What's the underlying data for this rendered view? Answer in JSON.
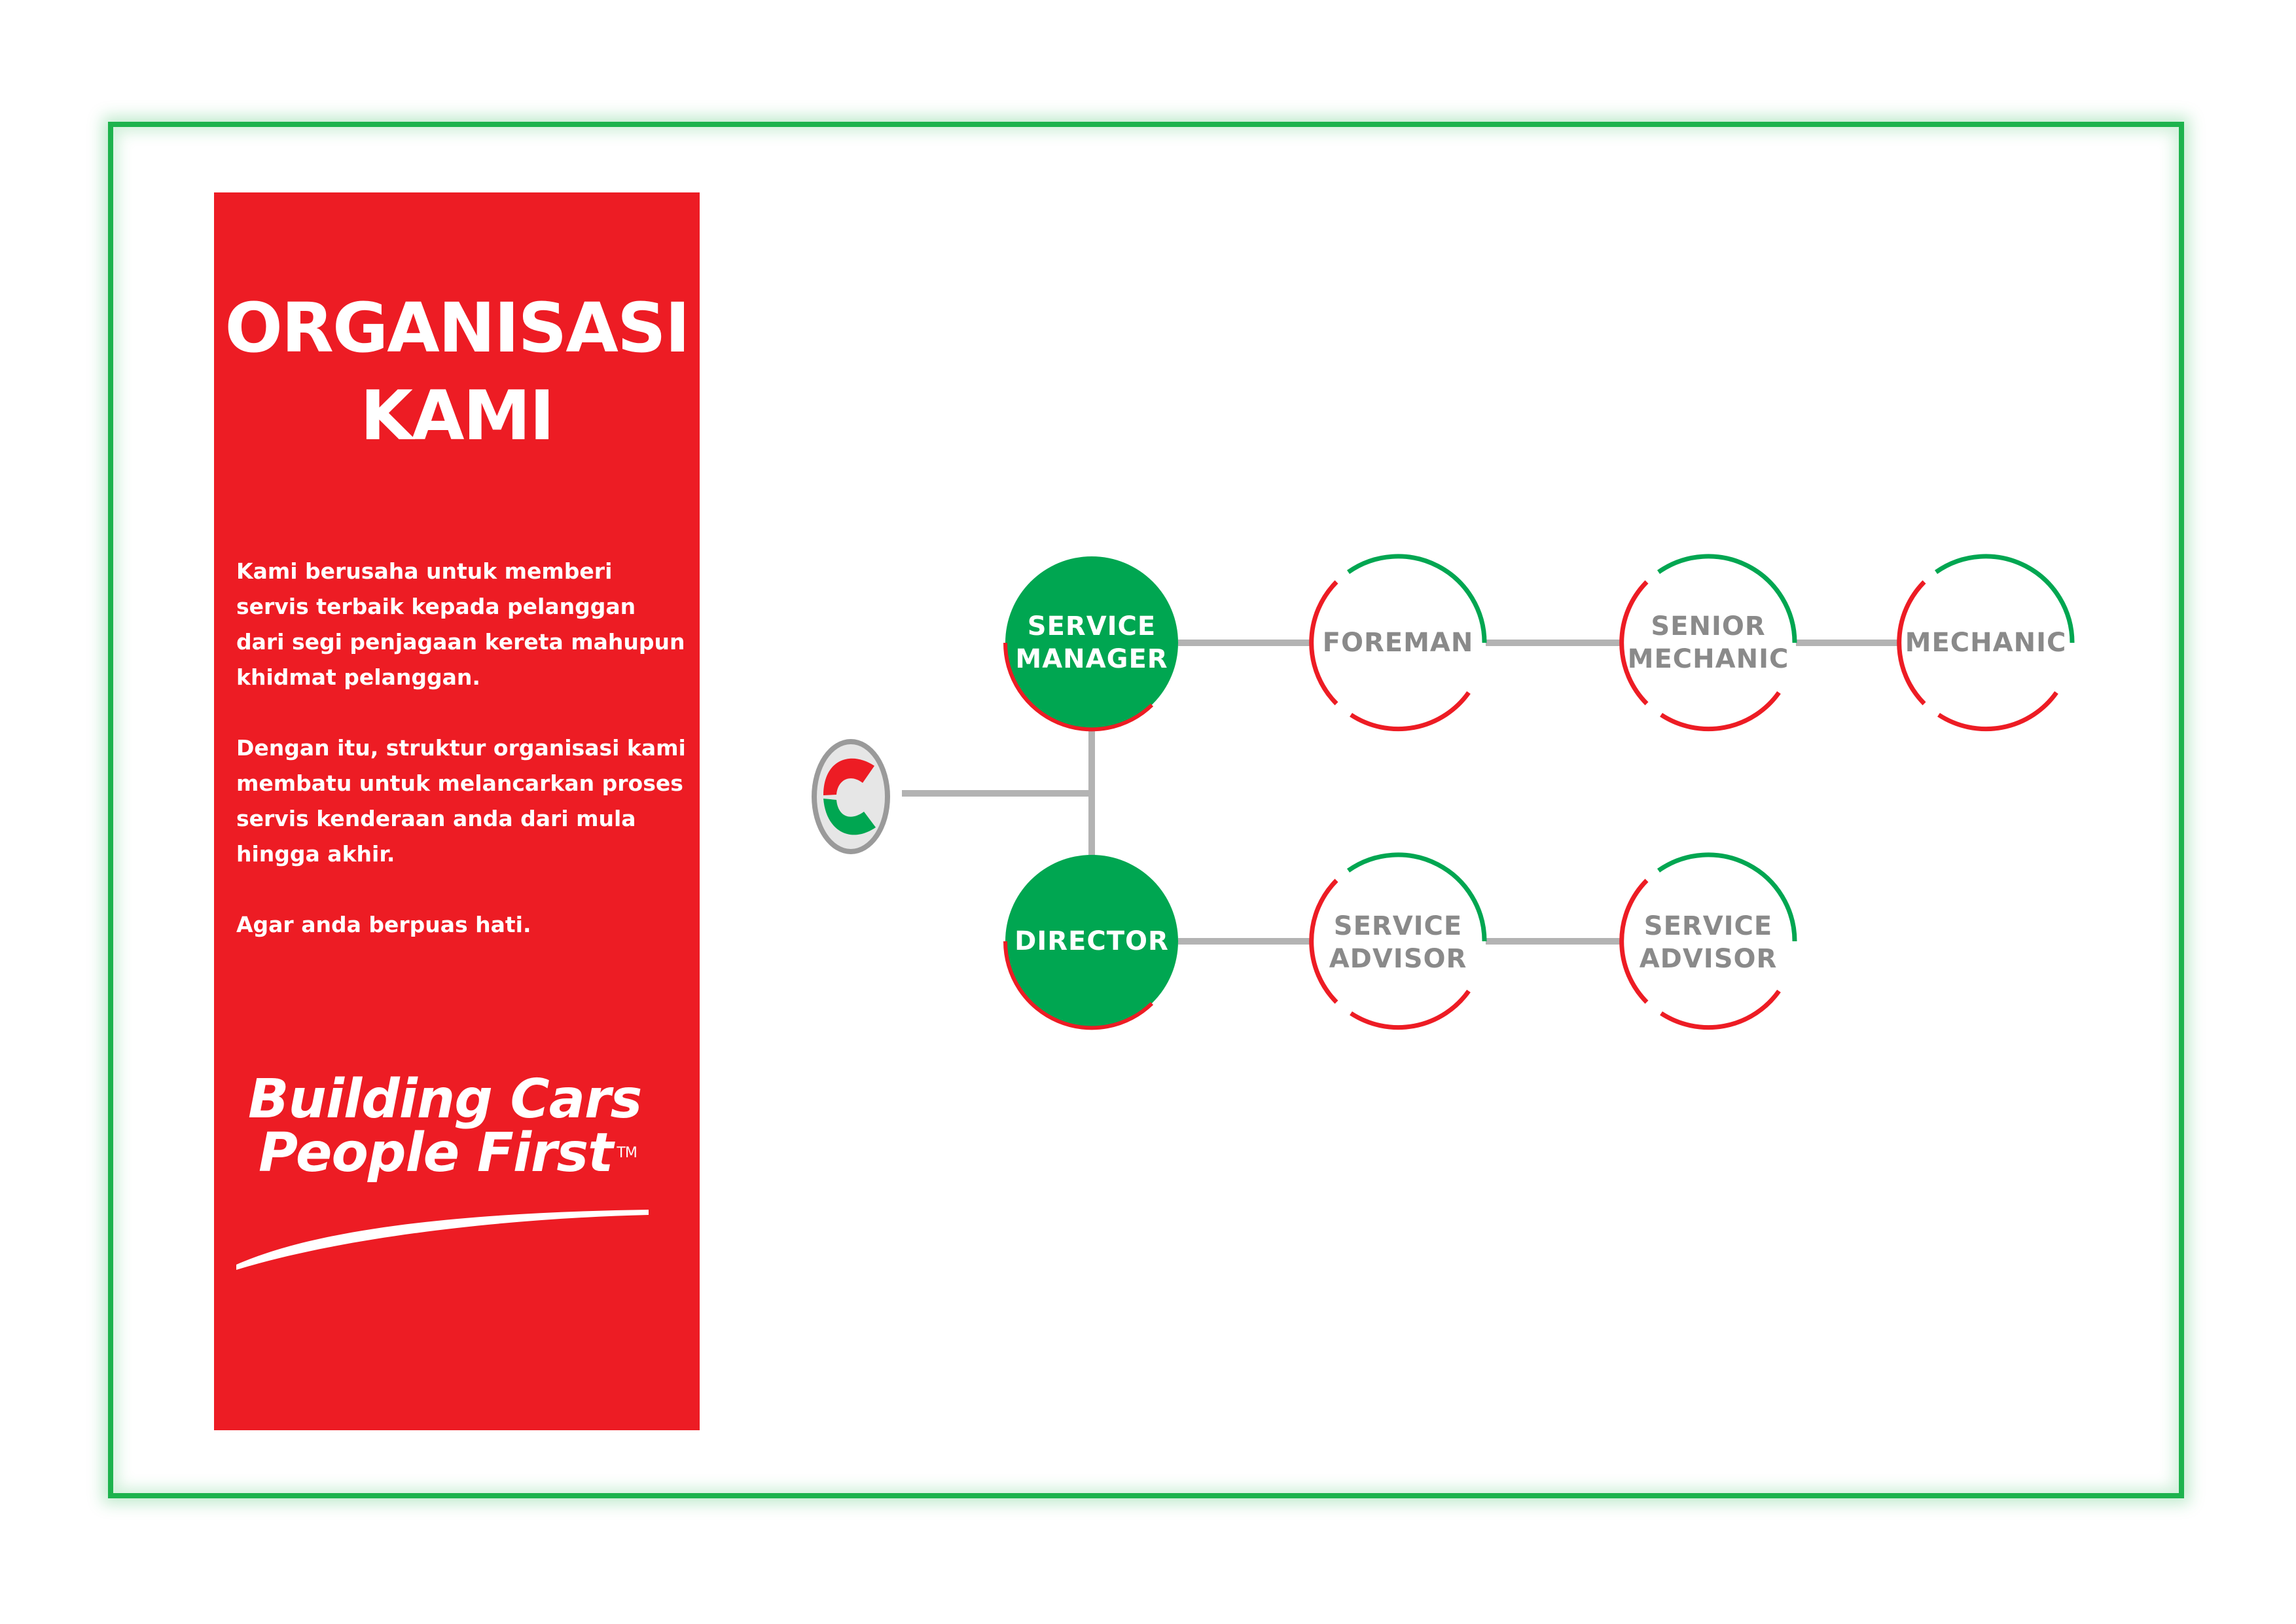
{
  "panel": {
    "title_line1": "ORGANISASI",
    "title_line2": "KAMI",
    "paragraph1": "Kami berusaha untuk memberi servis terbaik kepada pelanggan dari segi penjagaan kereta mahupun khidmat pelanggan.",
    "paragraph2": "Dengan itu, struktur organisasi kami membatu untuk melancarkan proses servis kenderaan anda dari mula hingga akhir.",
    "paragraph3": "Agar anda berpuas hati.",
    "slogan_line1": "Building Cars",
    "slogan_line2": "People First",
    "slogan_mark": "TM"
  },
  "logo": {
    "icon": "perodua-logo-icon"
  },
  "nodes": {
    "service_manager": {
      "line1": "SERVICE",
      "line2": "MANAGER"
    },
    "foreman": {
      "line1": "FOREMAN"
    },
    "senior_mechanic": {
      "line1": "SENIOR",
      "line2": "MECHANIC"
    },
    "mechanic": {
      "line1": "MECHANIC"
    },
    "director": {
      "line1": "DIRECTOR"
    },
    "service_advisor_1": {
      "line1": "SERVICE",
      "line2": "ADVISOR"
    },
    "service_advisor_2": {
      "line1": "SERVICE",
      "line2": "ADVISOR"
    }
  },
  "colors": {
    "red": "#ed1c24",
    "green": "#00a651",
    "connector": "#b3b3b3",
    "label_grey": "#8a8a8a",
    "frame": "#1db34d"
  }
}
